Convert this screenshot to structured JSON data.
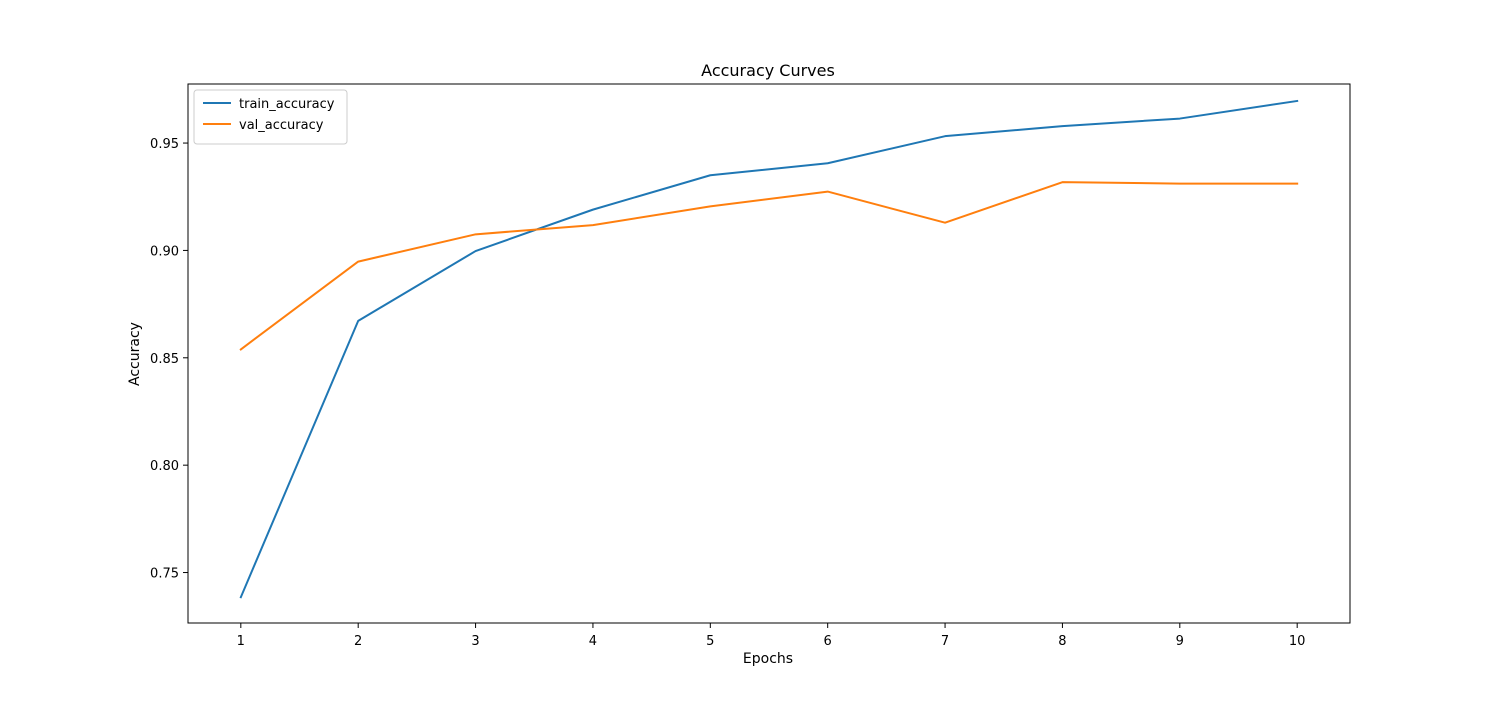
{
  "chart_data": {
    "type": "line",
    "title": "Accuracy Curves",
    "xlabel": "Epochs",
    "ylabel": "Accuracy",
    "x": [
      1,
      2,
      3,
      4,
      5,
      6,
      7,
      8,
      9,
      10
    ],
    "xlim": [
      0.55,
      10.45
    ],
    "ylim": [
      0.7265,
      0.9775
    ],
    "xticks": [
      1,
      2,
      3,
      4,
      5,
      6,
      7,
      8,
      9,
      10
    ],
    "yticks": [
      0.75,
      0.8,
      0.85,
      0.9,
      0.95
    ],
    "ytick_labels": [
      "0.75",
      "0.80",
      "0.85",
      "0.90",
      "0.95"
    ],
    "grid": false,
    "legend_location": "upper left",
    "series": [
      {
        "name": "train_accuracy",
        "color": "#1f77b4",
        "values": [
          0.7385,
          0.8672,
          0.8997,
          0.919,
          0.935,
          0.9406,
          0.9532,
          0.9579,
          0.9614,
          0.9696
        ]
      },
      {
        "name": "val_accuracy",
        "color": "#ff7f0e",
        "values": [
          0.8539,
          0.8948,
          0.9075,
          0.9118,
          0.9205,
          0.9274,
          0.9129,
          0.9318,
          0.9311,
          0.9311
        ]
      }
    ]
  }
}
